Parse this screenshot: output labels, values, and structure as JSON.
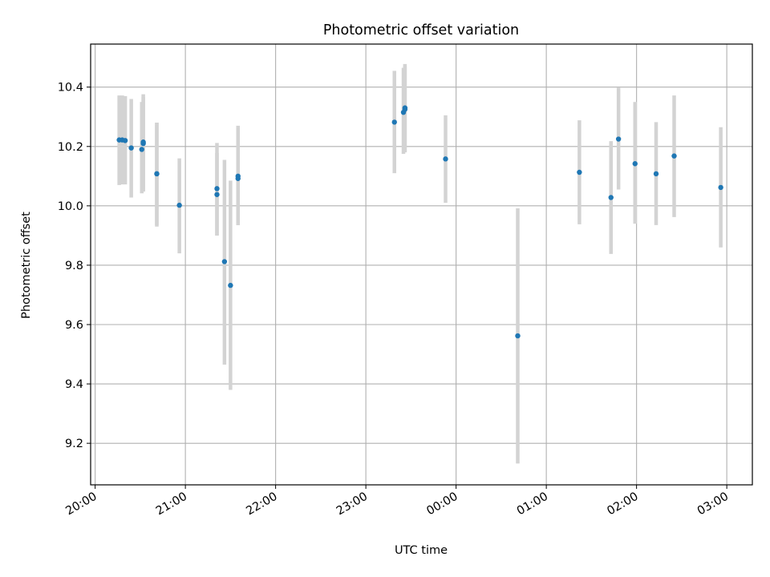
{
  "chart_data": {
    "type": "scatter",
    "title": "Photometric offset variation",
    "xlabel": "UTC time",
    "ylabel": "Photometric offset",
    "x_unit": "UTC time (evening to early morning, 20:00 to 03:00)",
    "xlim": [
      "19:57",
      "03:17"
    ],
    "ylim": [
      9.06,
      10.545
    ],
    "x_ticks": [
      "20:00",
      "21:00",
      "22:00",
      "23:00",
      "00:00",
      "01:00",
      "02:00",
      "03:00"
    ],
    "y_ticks": [
      "9.2",
      "9.4",
      "9.6",
      "9.8",
      "10.0",
      "10.2",
      "10.4"
    ],
    "grid": true,
    "colors": {
      "point": "#1f77b4",
      "errorbar": "#d3d3d3",
      "grid": "#b0b0b0"
    },
    "points": [
      {
        "x": "20:16",
        "y": 10.222,
        "err_low": 10.07,
        "err_high": 10.372
      },
      {
        "x": "20:18",
        "y": 10.222,
        "err_low": 10.072,
        "err_high": 10.372
      },
      {
        "x": "20:20",
        "y": 10.22,
        "err_low": 10.072,
        "err_high": 10.37
      },
      {
        "x": "20:24",
        "y": 10.195,
        "err_low": 10.028,
        "err_high": 10.36
      },
      {
        "x": "20:31",
        "y": 10.19,
        "err_low": 10.042,
        "err_high": 10.35
      },
      {
        "x": "20:32",
        "y": 10.215,
        "err_low": 10.05,
        "err_high": 10.376
      },
      {
        "x": "20:32",
        "y": 10.21,
        "err_low": 10.048,
        "err_high": 10.366
      },
      {
        "x": "20:41",
        "y": 10.108,
        "err_low": 9.93,
        "err_high": 10.28
      },
      {
        "x": "20:41",
        "y": 10.108,
        "err_low": 9.935,
        "err_high": 10.28
      },
      {
        "x": "20:56",
        "y": 10.002,
        "err_low": 9.84,
        "err_high": 10.16
      },
      {
        "x": "21:21",
        "y": 10.038,
        "err_low": 9.9,
        "err_high": 10.178
      },
      {
        "x": "21:21",
        "y": 10.058,
        "err_low": 9.9,
        "err_high": 10.212
      },
      {
        "x": "21:26",
        "y": 9.812,
        "err_low": 9.465,
        "err_high": 10.155
      },
      {
        "x": "21:30",
        "y": 9.732,
        "err_low": 9.38,
        "err_high": 10.085
      },
      {
        "x": "21:35",
        "y": 10.092,
        "err_low": 9.935,
        "err_high": 10.255
      },
      {
        "x": "21:35",
        "y": 10.1,
        "err_low": 9.935,
        "err_high": 10.27
      },
      {
        "x": "23:19",
        "y": 10.282,
        "err_low": 10.11,
        "err_high": 10.455
      },
      {
        "x": "23:25",
        "y": 10.315,
        "err_low": 10.175,
        "err_high": 10.465
      },
      {
        "x": "23:26",
        "y": 10.33,
        "err_low": 10.18,
        "err_high": 10.478
      },
      {
        "x": "23:26",
        "y": 10.325,
        "err_low": 10.182,
        "err_high": 10.47
      },
      {
        "x": "23:53",
        "y": 10.158,
        "err_low": 10.01,
        "err_high": 10.305
      },
      {
        "x": "00:41",
        "y": 9.562,
        "err_low": 9.132,
        "err_high": 9.992
      },
      {
        "x": "01:22",
        "y": 10.113,
        "err_low": 9.938,
        "err_high": 10.288
      },
      {
        "x": "01:43",
        "y": 10.028,
        "err_low": 9.838,
        "err_high": 10.218
      },
      {
        "x": "01:48",
        "y": 10.225,
        "err_low": 10.055,
        "err_high": 10.398
      },
      {
        "x": "01:59",
        "y": 10.142,
        "err_low": 9.94,
        "err_high": 10.35
      },
      {
        "x": "02:13",
        "y": 10.108,
        "err_low": 9.935,
        "err_high": 10.282
      },
      {
        "x": "02:25",
        "y": 10.168,
        "err_low": 9.962,
        "err_high": 10.372
      },
      {
        "x": "02:56",
        "y": 10.062,
        "err_low": 9.86,
        "err_high": 10.265
      }
    ]
  }
}
